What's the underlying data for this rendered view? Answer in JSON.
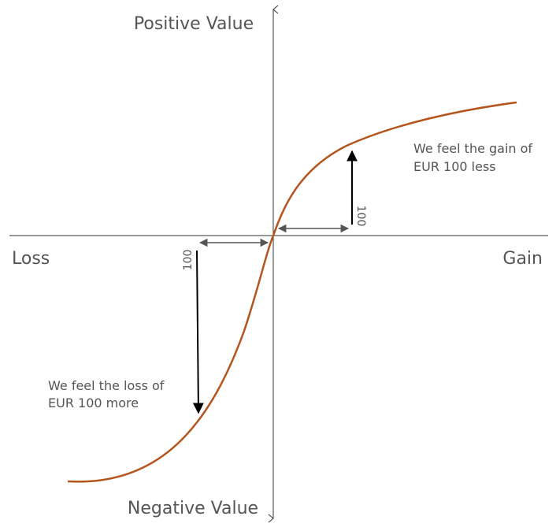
{
  "labels": {
    "top": "Positive Value",
    "bottom": "Negative Value",
    "left": "Loss",
    "right": "Gain"
  },
  "gain_note": {
    "line1": "We feel the gain of",
    "line2": "EUR 100 less"
  },
  "loss_note": {
    "line1": "We feel the loss of",
    "line2": "EUR 100 more"
  },
  "gain_amount": "100",
  "loss_amount": "100",
  "colors": {
    "curve": "#b5541c",
    "axis": "#333333",
    "measure": "#555555",
    "impact_arrow": "#000000",
    "text": "#555555"
  }
}
